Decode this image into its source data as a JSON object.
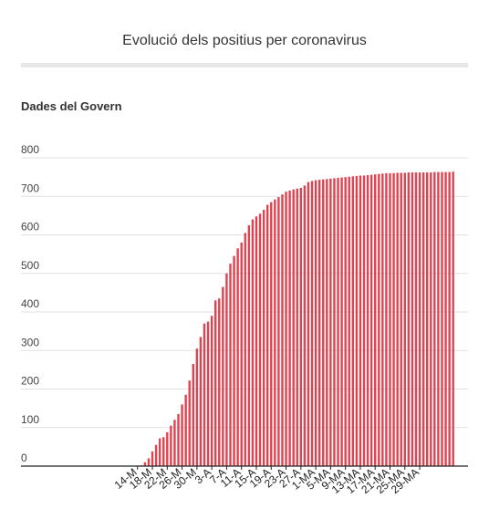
{
  "header": {
    "title": "Evolució dels positius per coronavirus",
    "subtitle": "Dades del Govern"
  },
  "colors": {
    "bar": "#e0434f",
    "grid": "#e2e2e2",
    "axis": "#222222"
  },
  "chart_data": {
    "type": "bar",
    "title": "Evolució dels positius per coronavirus",
    "subtitle": "Dades del Govern",
    "xlabel": "",
    "ylabel": "",
    "ylim": [
      0,
      800
    ],
    "yticks": [
      0,
      100,
      200,
      300,
      400,
      500,
      600,
      700,
      800
    ],
    "grid": true,
    "xtick_labels": [
      "14-M",
      "18-M",
      "22-M",
      "26-M",
      "30-M",
      "3-A",
      "7-A",
      "11-A",
      "15-A",
      "19-A",
      "23-A",
      "27-A",
      "1-MA",
      "5-MA",
      "9-MA",
      "13-MA",
      "17-MA",
      "21-MA",
      "25-MA",
      "29-MA"
    ],
    "series": [
      {
        "values": [
          0,
          0,
          0,
          0,
          0,
          0,
          0,
          0,
          0,
          0,
          0,
          0,
          0,
          0,
          0,
          0,
          0,
          0,
          0,
          0,
          0,
          0,
          0,
          2,
          10,
          20,
          38,
          55,
          72,
          75,
          88,
          105,
          120,
          135,
          160,
          185,
          222,
          265,
          305,
          335,
          370,
          375,
          390,
          430,
          435,
          465,
          500,
          525,
          545,
          565,
          580,
          605,
          625,
          640,
          648,
          655,
          665,
          678,
          685,
          692,
          698,
          705,
          712,
          715,
          718,
          720,
          722,
          728,
          737,
          740,
          742,
          743,
          744,
          745,
          746,
          747,
          748,
          749,
          750,
          751,
          752,
          753,
          754,
          754,
          755,
          756,
          757,
          758,
          759,
          760,
          760,
          760,
          761,
          761,
          761,
          762,
          762,
          762,
          762,
          762,
          762,
          762,
          763,
          763,
          763,
          763,
          763,
          764
        ]
      }
    ]
  }
}
